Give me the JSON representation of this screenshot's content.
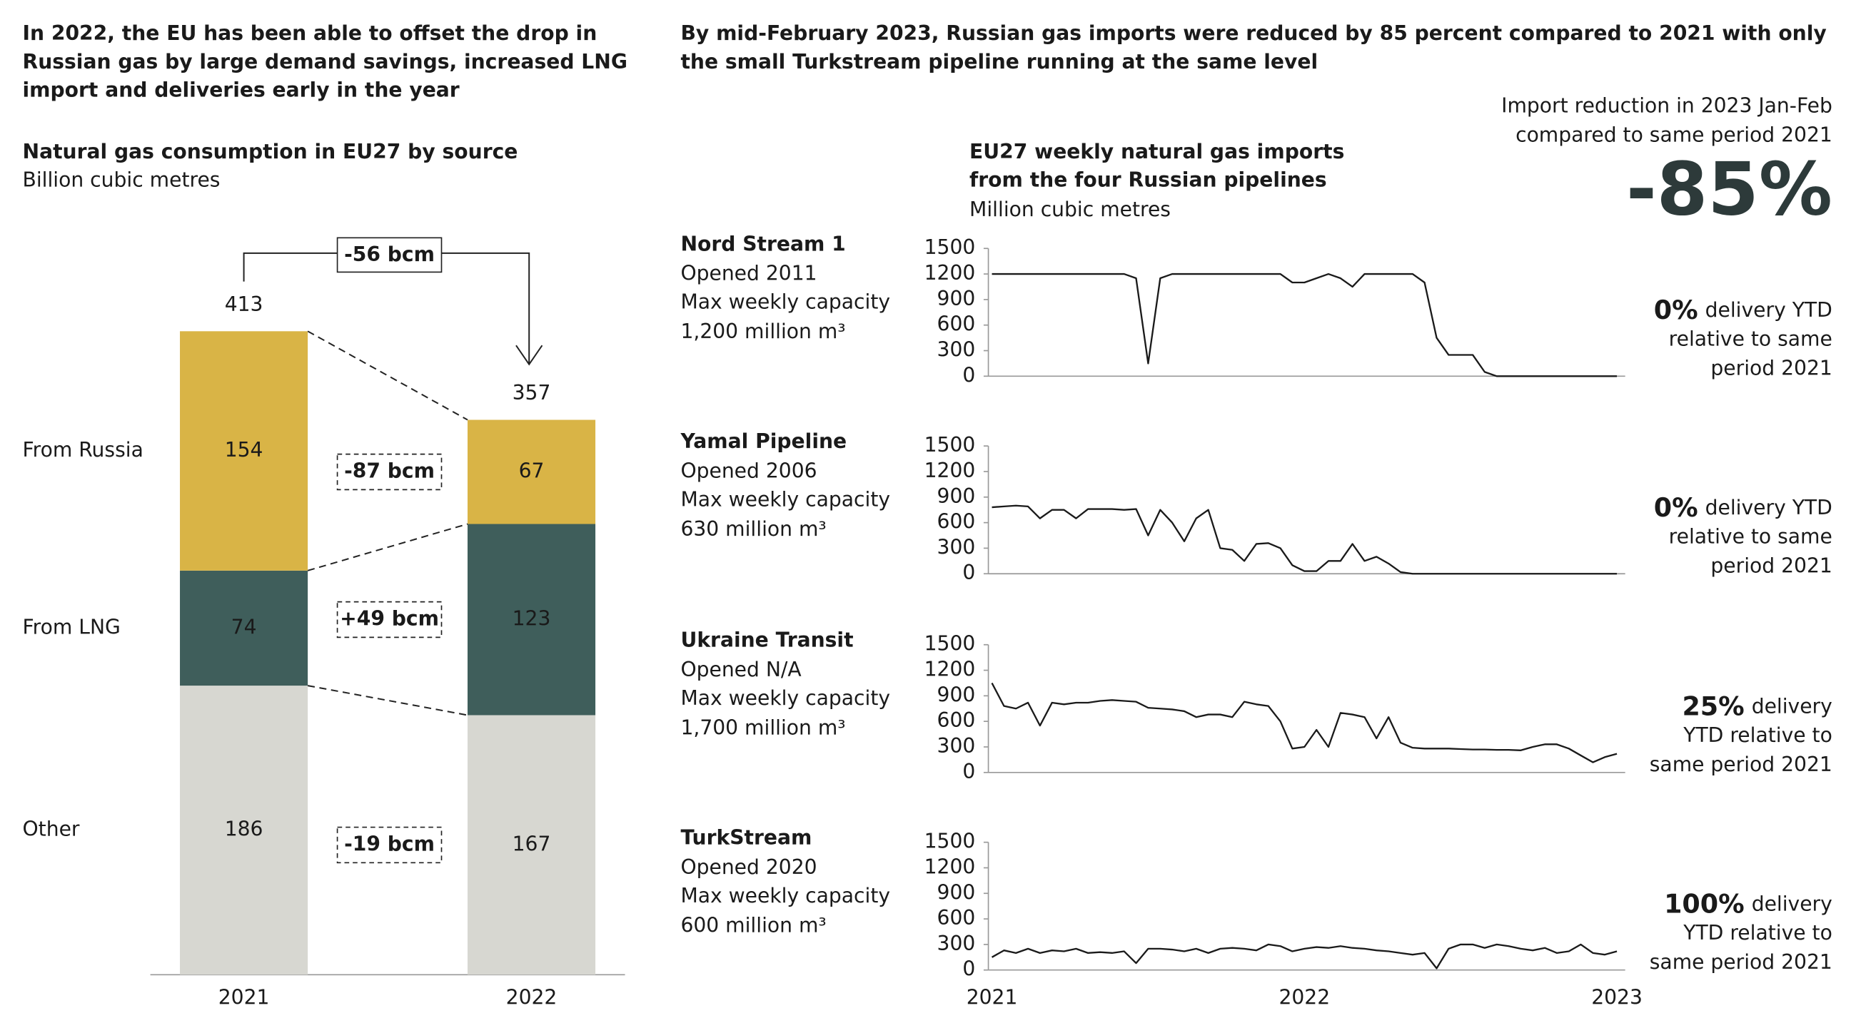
{
  "headline_left": [
    "In 2022, the EU has been able to offset the drop in",
    "Russian gas by large demand savings, increased LNG",
    "import and deliveries early in the year"
  ],
  "headline_right": [
    "By mid-February 2023, Russian gas imports were reduced by 85 percent compared to 2021 with only",
    "the small Turkstream pipeline running at the same level"
  ],
  "callout": {
    "lines": [
      "Import reduction in 2023 Jan-Feb",
      "compared to same period 2021"
    ],
    "figure": "-85%"
  },
  "chart_data": [
    {
      "type": "bar",
      "stacked": true,
      "title": "Natural gas consumption in EU27 by source",
      "subtitle": "Billion cubic metres",
      "categories": [
        "2021",
        "2022"
      ],
      "totals": [
        413,
        357
      ],
      "total_change_label": "-56 bcm",
      "series": [
        {
          "name": "Other",
          "color": "#d7d7d1",
          "text_color": "#1a1a1a",
          "values": [
            186,
            167
          ],
          "change_label": "-19 bcm"
        },
        {
          "name": "From LNG",
          "color": "#3f5e5b",
          "text_color": "#ffffff",
          "values": [
            74,
            123
          ],
          "change_label": "+49 bcm"
        },
        {
          "name": "From Russia",
          "color": "#d9b446",
          "text_color": "#1a1a1a",
          "values": [
            154,
            67
          ],
          "change_label": "-87 bcm"
        }
      ]
    },
    {
      "type": "line",
      "title": [
        "EU27 weekly natural gas imports",
        "from the four Russian pipelines"
      ],
      "subtitle": "Million cubic metres",
      "ylim": [
        0,
        1500
      ],
      "yticks": [
        0,
        300,
        600,
        900,
        1200,
        1500
      ],
      "color": "#1a1a1a",
      "categories": [
        "2021",
        null,
        null,
        null,
        null,
        null,
        null,
        null,
        null,
        null,
        null,
        null,
        null,
        null,
        null,
        null,
        null,
        null,
        null,
        null,
        null,
        null,
        null,
        null,
        null,
        null,
        "2022",
        null,
        null,
        null,
        null,
        null,
        null,
        null,
        null,
        null,
        null,
        null,
        null,
        null,
        null,
        null,
        null,
        null,
        null,
        null,
        null,
        null,
        null,
        null,
        null,
        null,
        "2023"
      ],
      "series": [
        {
          "name": "Nord Stream 1",
          "opened": "Opened 2011",
          "capacity_label": "Max weekly capacity",
          "capacity": "1,200 million m³",
          "ytd_pct": "0%",
          "ytd_lines": [
            "delivery YTD",
            "relative to same",
            "period 2021"
          ],
          "values": [
            1200,
            1200,
            1200,
            1200,
            1200,
            1200,
            1200,
            1200,
            1200,
            1200,
            1200,
            1200,
            1150,
            150,
            1150,
            1200,
            1200,
            1200,
            1200,
            1200,
            1200,
            1200,
            1200,
            1200,
            1200,
            1100,
            1100,
            1150,
            1200,
            1150,
            1050,
            1200,
            1200,
            1200,
            1200,
            1200,
            1100,
            450,
            250,
            250,
            250,
            50,
            0,
            0,
            0,
            0,
            0,
            0,
            0,
            0,
            0,
            0,
            0
          ]
        },
        {
          "name": "Yamal Pipeline",
          "opened": "Opened 2006",
          "capacity_label": "Max weekly capacity",
          "capacity": "630 million m³",
          "ytd_pct": "0%",
          "ytd_lines": [
            "delivery YTD",
            "relative to same",
            "period 2021"
          ],
          "values": [
            780,
            790,
            800,
            790,
            650,
            750,
            750,
            650,
            760,
            760,
            760,
            750,
            760,
            450,
            750,
            600,
            380,
            650,
            750,
            300,
            280,
            150,
            350,
            360,
            300,
            100,
            30,
            30,
            150,
            150,
            350,
            150,
            200,
            120,
            20,
            0,
            0,
            0,
            0,
            0,
            0,
            0,
            0,
            0,
            0,
            0,
            0,
            0,
            0,
            0,
            0,
            0,
            0
          ]
        },
        {
          "name": "Ukraine Transit",
          "opened": "Opened N/A",
          "capacity_label": "Max weekly capacity",
          "capacity": "1,700 million m³",
          "ytd_pct": "25%",
          "ytd_lines": [
            "delivery",
            "YTD relative to",
            "same period 2021"
          ],
          "values": [
            1050,
            780,
            750,
            820,
            550,
            820,
            800,
            820,
            820,
            840,
            850,
            840,
            830,
            760,
            750,
            740,
            720,
            650,
            680,
            680,
            650,
            830,
            800,
            780,
            600,
            280,
            300,
            500,
            300,
            700,
            680,
            650,
            400,
            650,
            350,
            290,
            280,
            280,
            280,
            275,
            270,
            270,
            265,
            265,
            260,
            300,
            330,
            330,
            280,
            200,
            120,
            180,
            220
          ]
        },
        {
          "name": "TurkStream",
          "opened": "Opened 2020",
          "capacity_label": "Max weekly capacity",
          "capacity": "600 million m³",
          "ytd_pct": "100%",
          "ytd_lines": [
            "delivery",
            "YTD relative to",
            "same period 2021"
          ],
          "values": [
            150,
            230,
            200,
            250,
            200,
            230,
            220,
            250,
            200,
            210,
            200,
            220,
            80,
            250,
            250,
            240,
            220,
            250,
            200,
            250,
            260,
            250,
            230,
            300,
            280,
            220,
            250,
            270,
            260,
            280,
            260,
            250,
            230,
            220,
            200,
            180,
            200,
            20,
            250,
            300,
            300,
            260,
            300,
            280,
            250,
            230,
            260,
            200,
            220,
            300,
            200,
            180,
            220
          ]
        }
      ]
    }
  ]
}
